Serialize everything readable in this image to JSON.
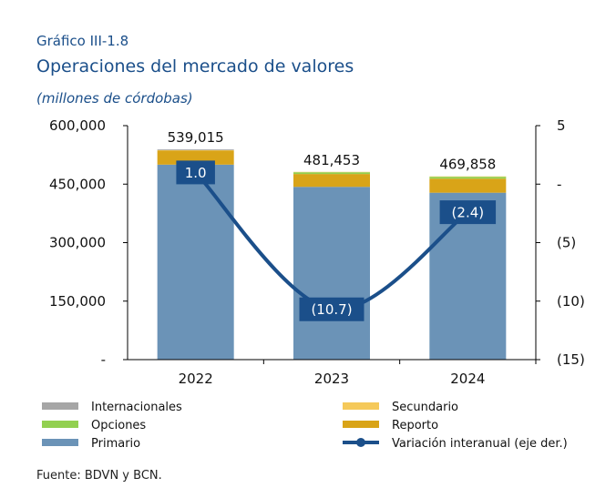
{
  "header": {
    "label": "Gráfico III-1.8",
    "title": "Operaciones del mercado de valores",
    "unit": "(millones de córdobas)"
  },
  "source": "Fuente: BDVN y BCN.",
  "chart_data": {
    "type": "bar",
    "stacked": true,
    "categories": [
      "2022",
      "2023",
      "2024"
    ],
    "series": [
      {
        "name": "Primario",
        "color": "#6b93b7",
        "values": [
          500000,
          443000,
          428000
        ]
      },
      {
        "name": "Reporto",
        "color": "#d9a418",
        "values": [
          36000,
          33000,
          36000
        ]
      },
      {
        "name": "Opciones",
        "color": "#92d050",
        "values": [
          0,
          4500,
          4858
        ]
      },
      {
        "name": "Secundario",
        "color": "#f5c95a",
        "values": [
          1000,
          953,
          1000
        ]
      },
      {
        "name": "Internacionales",
        "color": "#a6a6a6",
        "values": [
          2015,
          0,
          0
        ]
      }
    ],
    "totals": [
      "539,015",
      "481,453",
      "469,858"
    ],
    "left_axis": {
      "ylim": [
        0,
        600000
      ],
      "ticks": [
        "600,000",
        "450,000",
        "300,000",
        "150,000",
        "-"
      ]
    },
    "line": {
      "name": "Variación interanual (eje der.)",
      "color": "#1b4f8a",
      "values": [
        1.0,
        -10.7,
        -2.4
      ],
      "labels": [
        "1.0",
        "(10.7)",
        "(2.4)"
      ]
    },
    "right_axis": {
      "ylim": [
        -15,
        5
      ],
      "ticks": [
        "5",
        "-",
        "(5)",
        "(10)",
        "(15)"
      ]
    },
    "legend_order": [
      "Internacionales",
      "Secundario",
      "Opciones",
      "Reporto",
      "Primario",
      "Variación interanual (eje der.)"
    ],
    "legend_position": "bottom",
    "grid": false
  }
}
